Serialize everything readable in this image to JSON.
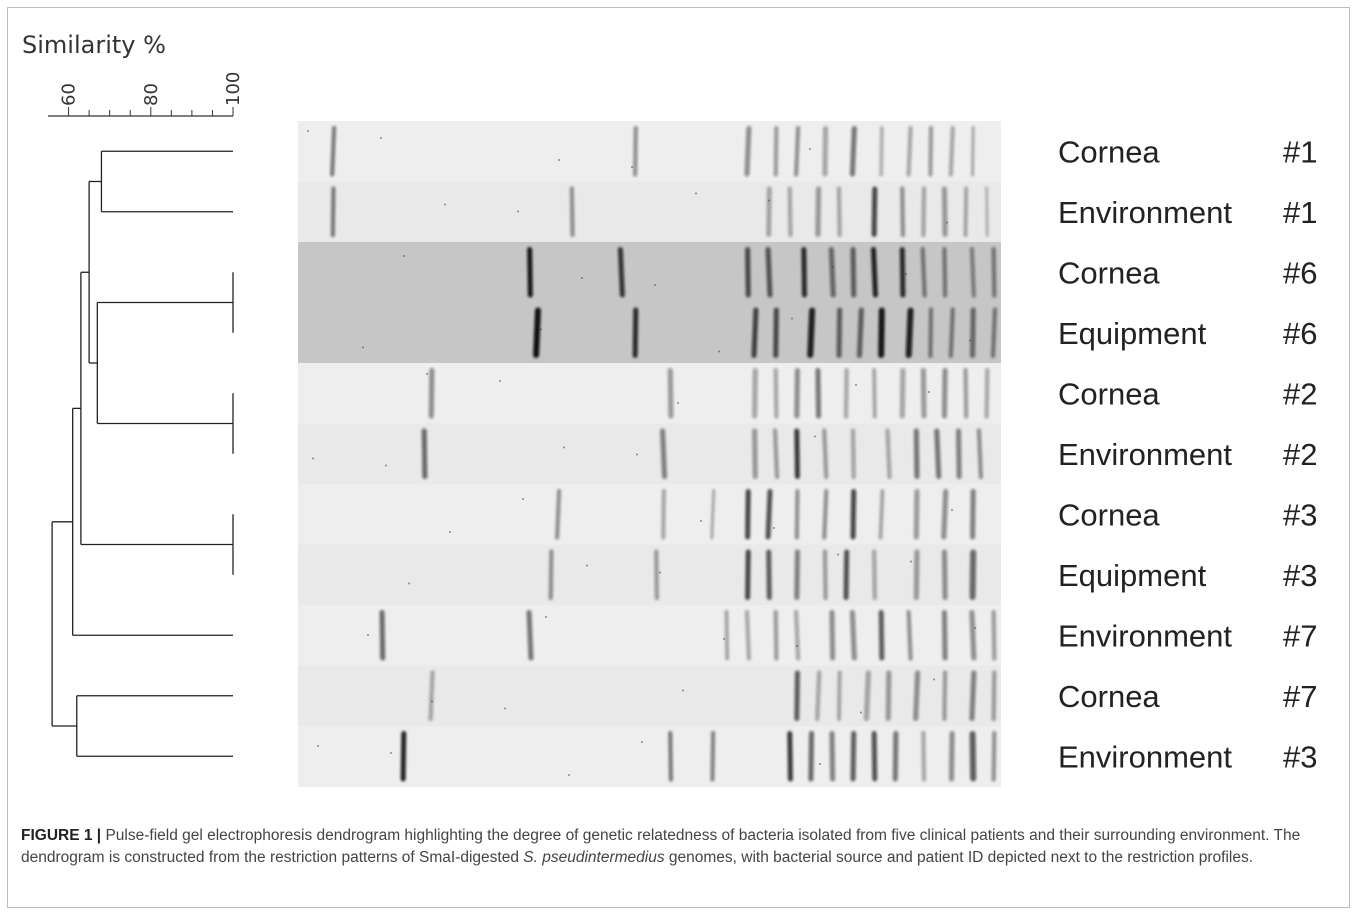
{
  "similarity_axis": {
    "title": "Similarity %",
    "ticks": [
      {
        "value": 60,
        "label": "60"
      },
      {
        "value": 80,
        "label": "80"
      },
      {
        "value": 100,
        "label": "100"
      }
    ],
    "range": [
      55,
      100
    ]
  },
  "lanes": [
    {
      "source": "Cornea",
      "patient": "#1",
      "dark": false,
      "bands": [
        [
          0.05,
          0.55,
          4
        ],
        [
          0.48,
          0.45,
          4
        ],
        [
          0.64,
          0.45,
          5
        ],
        [
          0.68,
          0.4,
          4
        ],
        [
          0.71,
          0.45,
          4
        ],
        [
          0.75,
          0.35,
          5
        ],
        [
          0.79,
          0.55,
          5
        ],
        [
          0.83,
          0.25,
          4
        ],
        [
          0.87,
          0.35,
          4
        ],
        [
          0.9,
          0.4,
          4
        ],
        [
          0.93,
          0.35,
          4
        ],
        [
          0.96,
          0.3,
          3
        ]
      ]
    },
    {
      "source": "Environment",
      "patient": "#1",
      "dark": false,
      "bands": [
        [
          0.05,
          0.55,
          4
        ],
        [
          0.39,
          0.45,
          4
        ],
        [
          0.67,
          0.3,
          5
        ],
        [
          0.7,
          0.35,
          4
        ],
        [
          0.74,
          0.4,
          5
        ],
        [
          0.77,
          0.35,
          4
        ],
        [
          0.82,
          0.75,
          5
        ],
        [
          0.86,
          0.45,
          4
        ],
        [
          0.89,
          0.35,
          4
        ],
        [
          0.92,
          0.4,
          5
        ],
        [
          0.95,
          0.3,
          4
        ],
        [
          0.98,
          0.25,
          3
        ]
      ]
    },
    {
      "source": "Cornea",
      "patient": "#6",
      "dark": true,
      "bands": [
        [
          0.33,
          0.95,
          5
        ],
        [
          0.46,
          0.8,
          5
        ],
        [
          0.64,
          0.7,
          5
        ],
        [
          0.67,
          0.65,
          5
        ],
        [
          0.72,
          0.85,
          5
        ],
        [
          0.76,
          0.55,
          5
        ],
        [
          0.79,
          0.6,
          5
        ],
        [
          0.82,
          0.9,
          5
        ],
        [
          0.86,
          0.85,
          5
        ],
        [
          0.89,
          0.5,
          4
        ],
        [
          0.92,
          0.5,
          4
        ],
        [
          0.96,
          0.45,
          4
        ],
        [
          0.99,
          0.5,
          4
        ]
      ]
    },
    {
      "source": "Equipment",
      "patient": "#6",
      "dark": true,
      "bands": [
        [
          0.34,
          0.98,
          6
        ],
        [
          0.48,
          0.85,
          5
        ],
        [
          0.65,
          0.75,
          5
        ],
        [
          0.68,
          0.7,
          5
        ],
        [
          0.73,
          0.9,
          6
        ],
        [
          0.77,
          0.6,
          5
        ],
        [
          0.8,
          0.6,
          5
        ],
        [
          0.83,
          0.95,
          6
        ],
        [
          0.87,
          0.9,
          6
        ],
        [
          0.9,
          0.5,
          4
        ],
        [
          0.93,
          0.5,
          4
        ],
        [
          0.96,
          0.55,
          5
        ],
        [
          0.99,
          0.5,
          4
        ]
      ]
    },
    {
      "source": "Cornea",
      "patient": "#2",
      "dark": false,
      "bands": [
        [
          0.19,
          0.45,
          5
        ],
        [
          0.53,
          0.4,
          5
        ],
        [
          0.65,
          0.35,
          5
        ],
        [
          0.68,
          0.35,
          4
        ],
        [
          0.71,
          0.45,
          5
        ],
        [
          0.74,
          0.55,
          5
        ],
        [
          0.78,
          0.35,
          4
        ],
        [
          0.82,
          0.3,
          4
        ],
        [
          0.86,
          0.35,
          5
        ],
        [
          0.89,
          0.4,
          5
        ],
        [
          0.92,
          0.45,
          5
        ],
        [
          0.95,
          0.4,
          4
        ],
        [
          0.98,
          0.35,
          4
        ]
      ]
    },
    {
      "source": "Environment",
      "patient": "#2",
      "dark": false,
      "bands": [
        [
          0.18,
          0.6,
          5
        ],
        [
          0.52,
          0.5,
          5
        ],
        [
          0.65,
          0.4,
          5
        ],
        [
          0.68,
          0.4,
          4
        ],
        [
          0.71,
          0.8,
          5
        ],
        [
          0.75,
          0.4,
          4
        ],
        [
          0.79,
          0.35,
          4
        ],
        [
          0.84,
          0.35,
          4
        ],
        [
          0.88,
          0.55,
          5
        ],
        [
          0.91,
          0.55,
          5
        ],
        [
          0.94,
          0.5,
          5
        ],
        [
          0.97,
          0.45,
          4
        ]
      ]
    },
    {
      "source": "Cornea",
      "patient": "#3",
      "dark": false,
      "bands": [
        [
          0.37,
          0.45,
          4
        ],
        [
          0.52,
          0.35,
          4
        ],
        [
          0.59,
          0.3,
          3
        ],
        [
          0.64,
          0.75,
          5
        ],
        [
          0.67,
          0.7,
          5
        ],
        [
          0.71,
          0.45,
          4
        ],
        [
          0.75,
          0.45,
          4
        ],
        [
          0.79,
          0.75,
          5
        ],
        [
          0.83,
          0.3,
          4
        ],
        [
          0.88,
          0.4,
          5
        ],
        [
          0.92,
          0.45,
          5
        ],
        [
          0.96,
          0.5,
          5
        ]
      ]
    },
    {
      "source": "Equipment",
      "patient": "#3",
      "dark": false,
      "bands": [
        [
          0.36,
          0.45,
          4
        ],
        [
          0.51,
          0.4,
          4
        ],
        [
          0.64,
          0.75,
          5
        ],
        [
          0.67,
          0.65,
          5
        ],
        [
          0.71,
          0.5,
          5
        ],
        [
          0.75,
          0.4,
          4
        ],
        [
          0.78,
          0.7,
          5
        ],
        [
          0.82,
          0.35,
          4
        ],
        [
          0.88,
          0.4,
          5
        ],
        [
          0.92,
          0.45,
          5
        ],
        [
          0.96,
          0.6,
          6
        ]
      ]
    },
    {
      "source": "Environment",
      "patient": "#7",
      "dark": false,
      "bands": [
        [
          0.12,
          0.6,
          5
        ],
        [
          0.33,
          0.55,
          5
        ],
        [
          0.61,
          0.3,
          4
        ],
        [
          0.64,
          0.35,
          4
        ],
        [
          0.68,
          0.4,
          4
        ],
        [
          0.71,
          0.35,
          4
        ],
        [
          0.76,
          0.45,
          5
        ],
        [
          0.79,
          0.45,
          5
        ],
        [
          0.83,
          0.65,
          5
        ],
        [
          0.87,
          0.45,
          4
        ],
        [
          0.92,
          0.5,
          5
        ],
        [
          0.96,
          0.45,
          5
        ],
        [
          0.99,
          0.4,
          4
        ]
      ]
    },
    {
      "source": "Cornea",
      "patient": "#7",
      "dark": false,
      "bands": [
        [
          0.19,
          0.35,
          4
        ],
        [
          0.71,
          0.65,
          5
        ],
        [
          0.74,
          0.35,
          4
        ],
        [
          0.77,
          0.3,
          4
        ],
        [
          0.81,
          0.35,
          5
        ],
        [
          0.84,
          0.4,
          5
        ],
        [
          0.88,
          0.45,
          5
        ],
        [
          0.92,
          0.4,
          4
        ],
        [
          0.96,
          0.5,
          5
        ],
        [
          0.99,
          0.4,
          4
        ]
      ]
    },
    {
      "source": "Environment",
      "patient": "#3",
      "dark": false,
      "bands": [
        [
          0.15,
          0.9,
          5
        ],
        [
          0.53,
          0.55,
          4
        ],
        [
          0.59,
          0.5,
          4
        ],
        [
          0.7,
          0.8,
          5
        ],
        [
          0.73,
          0.6,
          5
        ],
        [
          0.76,
          0.5,
          5
        ],
        [
          0.79,
          0.65,
          5
        ],
        [
          0.82,
          0.7,
          5
        ],
        [
          0.85,
          0.55,
          5
        ],
        [
          0.89,
          0.35,
          4
        ],
        [
          0.93,
          0.45,
          5
        ],
        [
          0.96,
          0.65,
          6
        ],
        [
          0.99,
          0.45,
          4
        ]
      ]
    }
  ],
  "dendrogram": {
    "nodes": [
      {
        "id": "n1",
        "children": [
          "L0",
          "L1"
        ],
        "similarity": 68
      },
      {
        "id": "n2",
        "children": [
          "L2",
          "L3"
        ],
        "similarity": 100
      },
      {
        "id": "n3",
        "children": [
          "L4",
          "L5"
        ],
        "similarity": 100
      },
      {
        "id": "n4",
        "children": [
          "n2",
          "n3"
        ],
        "similarity": 67
      },
      {
        "id": "n5",
        "children": [
          "n1",
          "n4"
        ],
        "similarity": 65
      },
      {
        "id": "n6",
        "children": [
          "L6",
          "L7"
        ],
        "similarity": 100
      },
      {
        "id": "n7",
        "children": [
          "n5",
          "n6"
        ],
        "similarity": 63
      },
      {
        "id": "n8",
        "children": [
          "n7",
          "L8"
        ],
        "similarity": 61
      },
      {
        "id": "n9",
        "children": [
          "L9",
          "L10"
        ],
        "similarity": 62
      },
      {
        "id": "n10",
        "children": [
          "n8",
          "n9"
        ],
        "similarity": 56
      }
    ]
  },
  "caption": {
    "label": "FIGURE 1 |",
    "text_before_italic": " Pulse-field gel electrophoresis dendrogram highlighting the degree of genetic relatedness of bacteria isolated from five clinical patients and their surrounding environment. The dendrogram is constructed from the restriction patterns of SmaI-digested ",
    "italic": "S. pseudintermedius",
    "text_after_italic": " genomes, with bacterial source and patient ID depicted next to the restriction profiles."
  }
}
